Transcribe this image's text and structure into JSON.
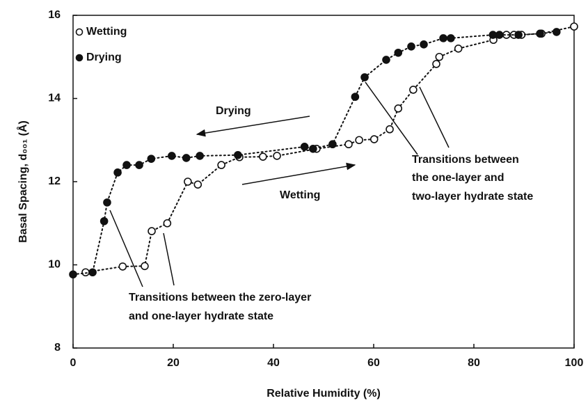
{
  "chart_data": {
    "type": "scatter",
    "xlabel": "Relative Humidity (%)",
    "ylabel": "Basal Spacing, d₀₀₁ (Å)",
    "xlim": [
      0,
      100
    ],
    "xticks": [
      0,
      20,
      40,
      60,
      80,
      100
    ],
    "ylim": [
      8,
      16
    ],
    "yticks": [
      8,
      10,
      12,
      14,
      16
    ],
    "grid": false,
    "legend": "upper left",
    "annotations": [
      "Drying",
      "Wetting"
    ],
    "transition_notes": [
      [
        "Transitions between",
        "the one-layer and",
        "two-layer hydrate state"
      ],
      [
        "Transitions between the zero-layer",
        "and one-layer hydrate state"
      ]
    ],
    "series": [
      {
        "name": "Wetting",
        "color": "#111111",
        "marker": "open",
        "x": [
          2.5,
          9.9,
          14.3,
          15.7,
          18.8,
          22.9,
          24.9,
          29.6,
          33.2,
          37.9,
          40.7,
          48.6,
          55.0,
          57.1,
          60.1,
          63.2,
          64.9,
          67.9,
          72.5,
          73.1,
          76.9,
          83.9,
          86.5,
          88.0,
          89.5,
          93.5,
          100
        ],
        "values": [
          9.82,
          9.96,
          9.97,
          10.81,
          11.0,
          12.0,
          11.93,
          12.4,
          12.59,
          12.6,
          12.62,
          12.79,
          12.9,
          13.0,
          13.02,
          13.26,
          13.76,
          14.21,
          14.83,
          15.0,
          15.2,
          15.41,
          15.53,
          15.53,
          15.53,
          15.56,
          15.73
        ]
      },
      {
        "name": "Drying",
        "color": "#111111",
        "marker": "filled",
        "x": [
          0,
          3.9,
          6.2,
          6.8,
          8.9,
          10.7,
          13.2,
          15.6,
          19.7,
          22.6,
          25.3,
          32.9,
          46.2,
          47.9,
          51.8,
          56.3,
          58.2,
          62.5,
          64.9,
          67.5,
          70.0,
          73.9,
          75.4,
          83.8,
          85.1,
          88.9,
          93.2,
          96.5
        ],
        "values": [
          9.77,
          9.82,
          11.05,
          11.5,
          12.22,
          12.4,
          12.4,
          12.55,
          12.62,
          12.57,
          12.62,
          12.64,
          12.84,
          12.79,
          12.9,
          14.04,
          14.51,
          14.93,
          15.1,
          15.25,
          15.3,
          15.45,
          15.45,
          15.53,
          15.53,
          15.53,
          15.56,
          15.6
        ]
      }
    ]
  }
}
